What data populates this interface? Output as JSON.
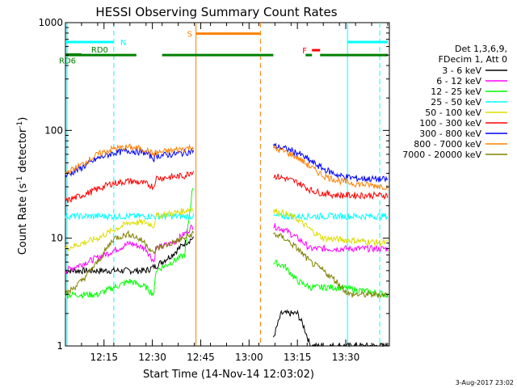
{
  "chart_data": {
    "type": "line",
    "title": "HESSI Observing Summary Count Rates",
    "xlabel": "Start Time (14-Nov-14 12:03:02)",
    "ylabel_main": "Count Rate (s",
    "ylabel_sup1": "-1",
    "ylabel_mid": " detector",
    "ylabel_sup2": "-1",
    "ylabel_end": ")",
    "y_scale": "log",
    "ylim": [
      1,
      1000
    ],
    "xlim_minutes": [
      0,
      100.5
    ],
    "x_ticks": [
      {
        "label": "12:15",
        "minute": 11.97
      },
      {
        "label": "12:30",
        "minute": 26.97
      },
      {
        "label": "12:45",
        "minute": 41.97
      },
      {
        "label": "13:00",
        "minute": 56.97
      },
      {
        "label": "13:15",
        "minute": 71.97
      },
      {
        "label": "13:30",
        "minute": 86.97
      }
    ],
    "y_ticks": [
      {
        "label": "1",
        "value": 1
      },
      {
        "label": "10",
        "value": 10
      },
      {
        "label": "100",
        "value": 100
      },
      {
        "label": "1000",
        "value": 1000
      }
    ],
    "legend_header": [
      "Det 1,3,6,9,",
      "FDecim 1, Att 0"
    ],
    "series": [
      {
        "name": "3 - 6 keV",
        "color": "#000000",
        "points": [
          [
            0,
            5
          ],
          [
            15,
            5
          ],
          [
            25,
            5
          ],
          [
            28,
            5.5
          ],
          [
            33,
            7
          ],
          [
            37,
            9
          ],
          [
            39.5,
            10
          ],
          [
            64.5,
            1.2
          ],
          [
            67,
            2
          ],
          [
            70,
            2
          ],
          [
            72,
            2
          ],
          [
            74,
            1.5
          ],
          [
            76,
            1
          ],
          [
            88,
            1
          ],
          [
            100,
            1
          ]
        ]
      },
      {
        "name": "6 - 12 keV",
        "color": "#ff00ff",
        "points": [
          [
            0,
            5
          ],
          [
            12,
            7
          ],
          [
            20,
            9
          ],
          [
            25,
            8
          ],
          [
            27.5,
            6
          ],
          [
            28,
            8
          ],
          [
            33,
            9
          ],
          [
            37,
            11
          ],
          [
            39.5,
            13
          ],
          [
            64.5,
            13
          ],
          [
            68,
            12
          ],
          [
            72,
            10
          ],
          [
            74,
            9
          ],
          [
            76,
            8
          ],
          [
            100,
            8
          ]
        ]
      },
      {
        "name": "12 - 25 keV",
        "color": "#00ff00",
        "points": [
          [
            0,
            3
          ],
          [
            10,
            3
          ],
          [
            15,
            3.5
          ],
          [
            20,
            4
          ],
          [
            25,
            3.5
          ],
          [
            27.5,
            3
          ],
          [
            28,
            5
          ],
          [
            33,
            6
          ],
          [
            37,
            7
          ],
          [
            39.5,
            30
          ],
          [
            64.5,
            6
          ],
          [
            68,
            5.5
          ],
          [
            72,
            4
          ],
          [
            76,
            3.5
          ],
          [
            85,
            3.5
          ],
          [
            100,
            3
          ]
        ]
      },
      {
        "name": "25 - 50 keV",
        "color": "#00ffff",
        "points": [
          [
            0,
            16
          ],
          [
            100,
            16
          ]
        ]
      },
      {
        "name": "50 - 100 keV",
        "color": "#dddd00",
        "points": [
          [
            0,
            8
          ],
          [
            10,
            10
          ],
          [
            15,
            12
          ],
          [
            20,
            14
          ],
          [
            25,
            14
          ],
          [
            27.5,
            13
          ],
          [
            28,
            16
          ],
          [
            33,
            17
          ],
          [
            37,
            18
          ],
          [
            39.5,
            19
          ],
          [
            64.5,
            18
          ],
          [
            68,
            17
          ],
          [
            72,
            15
          ],
          [
            76,
            12
          ],
          [
            80,
            10
          ],
          [
            100,
            9
          ]
        ]
      },
      {
        "name": "100 - 300 keV",
        "color": "#ff0000",
        "points": [
          [
            0,
            22
          ],
          [
            8,
            27
          ],
          [
            14,
            32
          ],
          [
            20,
            34
          ],
          [
            25,
            32
          ],
          [
            27.5,
            30
          ],
          [
            28,
            36
          ],
          [
            33,
            37
          ],
          [
            37,
            38
          ],
          [
            39.5,
            42
          ],
          [
            64.5,
            38
          ],
          [
            68,
            36
          ],
          [
            72,
            33
          ],
          [
            76,
            28
          ],
          [
            80,
            26
          ],
          [
            85,
            25
          ],
          [
            100,
            25
          ]
        ]
      },
      {
        "name": "300 - 800 keV",
        "color": "#0000ff",
        "points": [
          [
            0,
            38
          ],
          [
            5,
            45
          ],
          [
            10,
            55
          ],
          [
            15,
            62
          ],
          [
            20,
            65
          ],
          [
            25,
            62
          ],
          [
            27.5,
            55
          ],
          [
            28,
            58
          ],
          [
            33,
            60
          ],
          [
            37,
            62
          ],
          [
            39.5,
            65
          ],
          [
            64.5,
            72
          ],
          [
            68,
            68
          ],
          [
            72,
            62
          ],
          [
            76,
            52
          ],
          [
            80,
            44
          ],
          [
            85,
            38
          ],
          [
            90,
            36
          ],
          [
            100,
            35
          ]
        ]
      },
      {
        "name": "800 - 7000 keV",
        "color": "#ff8000",
        "points": [
          [
            0,
            40
          ],
          [
            5,
            48
          ],
          [
            10,
            60
          ],
          [
            15,
            68
          ],
          [
            20,
            70
          ],
          [
            25,
            66
          ],
          [
            27.5,
            60
          ],
          [
            28,
            62
          ],
          [
            33,
            65
          ],
          [
            37,
            68
          ],
          [
            39.5,
            70
          ],
          [
            64.5,
            68
          ],
          [
            68,
            64
          ],
          [
            72,
            56
          ],
          [
            76,
            46
          ],
          [
            80,
            38
          ],
          [
            85,
            34
          ],
          [
            90,
            32
          ],
          [
            100,
            30
          ]
        ]
      },
      {
        "name": "7000 - 20000 keV",
        "color": "#808000",
        "points": [
          [
            0,
            3
          ],
          [
            5,
            4
          ],
          [
            10,
            6
          ],
          [
            15,
            10
          ],
          [
            20,
            11
          ],
          [
            25,
            9
          ],
          [
            27.5,
            7
          ],
          [
            28,
            8
          ],
          [
            33,
            9
          ],
          [
            37,
            10
          ],
          [
            39.5,
            11
          ],
          [
            64.5,
            11
          ],
          [
            68,
            10
          ],
          [
            72,
            8
          ],
          [
            76,
            6
          ],
          [
            80,
            5
          ],
          [
            84,
            4
          ],
          [
            88,
            3
          ],
          [
            100,
            3
          ]
        ]
      }
    ],
    "flags": [
      {
        "label": "N",
        "color": "#00ffff",
        "segments": [
          [
            0,
            15
          ],
          [
            87.5,
            100
          ]
        ],
        "value": 660
      },
      {
        "label": "S",
        "color": "#ff8000",
        "segments": [
          [
            40.5,
            60.5
          ]
        ],
        "value": 790
      },
      {
        "label": "F",
        "color": "#ff0000",
        "segments": [
          [
            76.5,
            79
          ]
        ],
        "value": 555
      },
      {
        "label": "RD0",
        "color": "#008000",
        "segments": [
          [
            0,
            22
          ],
          [
            30,
            64.5
          ],
          [
            74.5,
            76.5
          ],
          [
            79,
            100
          ]
        ],
        "value": 500
      },
      {
        "label": "RD6",
        "color": "#008000",
        "segments": [
          [
            0,
            5
          ]
        ],
        "value": 505
      }
    ],
    "vlines": [
      {
        "minute": 0.5,
        "color": "#00ffff",
        "style": "solid"
      },
      {
        "minute": 15,
        "color": "#00ffff",
        "style": "dashed"
      },
      {
        "minute": 40.5,
        "color": "#ff8000",
        "style": "solid"
      },
      {
        "minute": 60.5,
        "color": "#ff8000",
        "style": "dashed"
      },
      {
        "minute": 87.5,
        "color": "#00ffff",
        "style": "solid"
      },
      {
        "minute": 97.5,
        "color": "#00ffff",
        "style": "dashed"
      }
    ],
    "gaps_minutes": [
      [
        39.8,
        64.5
      ]
    ],
    "footer": "3-Aug-2017 23:02"
  }
}
